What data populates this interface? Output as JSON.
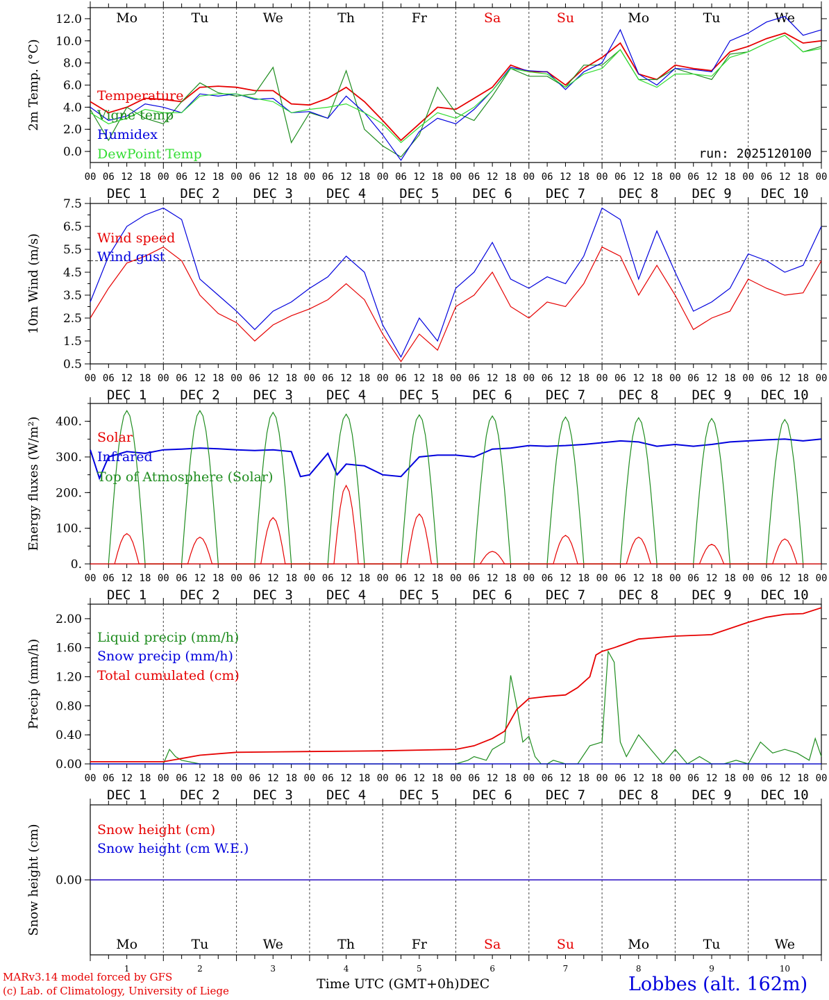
{
  "site": "Lobbes (alt. 162m)",
  "credit_line1": "MARv3.14 model forced by GFS",
  "credit_line2": "(c) Lab. of Climatology, University of Liege",
  "x_title": "Time UTC (GMT+0h)",
  "x_month": "DEC",
  "day_names": [
    "Mo",
    "Tu",
    "We",
    "Th",
    "Fr",
    "Sa",
    "Su",
    "Mo",
    "Tu",
    "We"
  ],
  "weekend_days": [
    5,
    6
  ],
  "day_numbers": [
    "1",
    "2",
    "3",
    "4",
    "5",
    "6",
    "7",
    "8",
    "9",
    "10"
  ],
  "date_labels": [
    "DEC  1",
    "DEC  2",
    "DEC  3",
    "DEC  4",
    "DEC  5",
    "DEC  6",
    "DEC  7",
    "DEC  8",
    "DEC  9",
    "DEC 10"
  ],
  "hour_ticks": [
    "00",
    "06",
    "12",
    "18"
  ],
  "colors": {
    "red": "#e60000",
    "blue": "#0000dd",
    "green": "#1e8c1e",
    "lightgreen": "#33dd33",
    "weekend": "#e60000"
  },
  "chart_data": [
    {
      "type": "line",
      "ylabel": "2m Temp. (°C)",
      "ylim": [
        -1,
        13
      ],
      "yticks": [
        "0.0",
        "2.0",
        "4.0",
        "6.0",
        "8.0",
        "10.0",
        "12.0"
      ],
      "annotation": "run: 2025120100",
      "x_unit": "hours since DEC 1 00 UTC",
      "series": [
        {
          "name": "Temperature",
          "color": "#e60000",
          "x": [
            0,
            6,
            12,
            18,
            24,
            30,
            36,
            42,
            48,
            54,
            60,
            66,
            72,
            78,
            84,
            90,
            96,
            102,
            108,
            114,
            120,
            126,
            132,
            138,
            144,
            150,
            156,
            162,
            168,
            174,
            180,
            186,
            192,
            198,
            204,
            210,
            216,
            222,
            228,
            234,
            240
          ],
          "values": [
            4.5,
            3.5,
            4.0,
            4.8,
            4.7,
            4.5,
            5.8,
            5.9,
            5.8,
            5.5,
            5.5,
            4.3,
            4.2,
            4.8,
            5.8,
            4.5,
            2.8,
            1.0,
            2.5,
            4.0,
            3.8,
            4.8,
            5.8,
            7.8,
            7.2,
            7.2,
            6.0,
            7.5,
            8.5,
            9.8,
            7.0,
            6.5,
            7.8,
            7.5,
            7.3,
            9.0,
            9.5,
            10.2,
            10.7,
            9.8,
            10.0
          ]
        },
        {
          "name": "Vigne temp",
          "color": "#1e8c1e",
          "x": [
            0,
            6,
            12,
            18,
            24,
            30,
            36,
            42,
            48,
            54,
            60,
            66,
            72,
            78,
            84,
            90,
            96,
            102,
            108,
            114,
            120,
            126,
            132,
            138,
            144,
            150,
            156,
            162,
            168,
            174,
            180,
            186,
            192,
            198,
            204,
            210,
            216,
            222,
            228,
            234,
            240
          ],
          "values": [
            3.8,
            1.0,
            4.0,
            3.0,
            2.5,
            4.5,
            6.2,
            5.3,
            5.0,
            5.2,
            7.6,
            0.8,
            3.5,
            3.0,
            7.3,
            2.0,
            0.5,
            -0.5,
            1.5,
            5.8,
            3.5,
            2.8,
            5.0,
            7.5,
            6.8,
            6.8,
            5.8,
            7.8,
            7.8,
            9.2,
            6.5,
            6.5,
            7.5,
            7.0,
            6.5,
            8.8,
            9.0,
            9.8,
            10.5,
            9.0,
            9.5
          ]
        },
        {
          "name": "Humidex",
          "color": "#0000dd",
          "x": [
            0,
            6,
            12,
            18,
            24,
            30,
            36,
            42,
            48,
            54,
            60,
            66,
            72,
            78,
            84,
            90,
            96,
            102,
            108,
            114,
            120,
            126,
            132,
            138,
            144,
            150,
            156,
            162,
            168,
            174,
            180,
            186,
            192,
            198,
            204,
            210,
            216,
            222,
            228,
            234,
            240
          ],
          "values": [
            4.0,
            2.8,
            3.2,
            4.3,
            4.0,
            3.5,
            5.2,
            5.0,
            5.2,
            4.7,
            4.8,
            3.5,
            3.6,
            3.0,
            5.0,
            3.5,
            1.5,
            -0.8,
            1.8,
            3.0,
            2.5,
            3.8,
            5.5,
            7.6,
            7.3,
            7.2,
            5.6,
            7.2,
            8.0,
            11.0,
            7.0,
            6.0,
            7.5,
            7.4,
            7.2,
            10.0,
            10.7,
            11.7,
            12.2,
            10.5,
            11.0
          ]
        },
        {
          "name": "DewPoint Temp",
          "color": "#33dd33",
          "x": [
            0,
            6,
            12,
            18,
            24,
            30,
            36,
            42,
            48,
            54,
            60,
            66,
            72,
            78,
            84,
            90,
            96,
            102,
            108,
            114,
            120,
            126,
            132,
            138,
            144,
            150,
            156,
            162,
            168,
            174,
            180,
            186,
            192,
            198,
            204,
            210,
            216,
            222,
            228,
            234,
            240
          ],
          "values": [
            3.5,
            2.5,
            3.0,
            3.8,
            3.5,
            3.5,
            5.0,
            5.2,
            5.2,
            4.8,
            4.5,
            3.5,
            3.8,
            4.0,
            4.3,
            3.5,
            2.5,
            0.8,
            2.2,
            3.5,
            3.0,
            4.0,
            5.5,
            7.5,
            7.2,
            7.0,
            5.8,
            7.0,
            7.5,
            9.2,
            6.5,
            5.8,
            7.0,
            7.0,
            6.8,
            8.5,
            9.0,
            9.8,
            10.5,
            9.0,
            9.3
          ]
        }
      ]
    },
    {
      "type": "line",
      "ylabel": "10m Wind (m/s)",
      "ylim": [
        0.5,
        7.5
      ],
      "yticks": [
        "0.5",
        "1.5",
        "2.5",
        "3.5",
        "4.5",
        "5.5",
        "6.5",
        "7.5"
      ],
      "reference_line": 5.0,
      "x_unit": "hours since DEC 1 00 UTC",
      "series": [
        {
          "name": "Wind speed",
          "color": "#e60000",
          "x": [
            0,
            6,
            12,
            18,
            24,
            30,
            36,
            42,
            48,
            54,
            60,
            66,
            72,
            78,
            84,
            90,
            96,
            102,
            108,
            114,
            120,
            126,
            132,
            138,
            144,
            150,
            156,
            162,
            168,
            174,
            180,
            186,
            192,
            198,
            204,
            210,
            216,
            222,
            228,
            234,
            240
          ],
          "values": [
            2.5,
            3.8,
            4.9,
            5.2,
            5.6,
            5.0,
            3.5,
            2.7,
            2.3,
            1.5,
            2.2,
            2.6,
            2.9,
            3.3,
            4.0,
            3.3,
            1.8,
            0.6,
            1.8,
            1.1,
            3.0,
            3.5,
            4.5,
            3.0,
            2.5,
            3.2,
            3.0,
            4.0,
            5.6,
            5.2,
            3.5,
            4.8,
            3.5,
            2.0,
            2.5,
            2.8,
            4.2,
            3.8,
            3.5,
            3.6,
            5.0
          ]
        },
        {
          "name": "Wind gust",
          "color": "#0000dd",
          "x": [
            0,
            6,
            12,
            18,
            24,
            30,
            36,
            42,
            48,
            54,
            60,
            66,
            72,
            78,
            84,
            90,
            96,
            102,
            108,
            114,
            120,
            126,
            132,
            138,
            144,
            150,
            156,
            162,
            168,
            174,
            180,
            186,
            192,
            198,
            204,
            210,
            216,
            222,
            228,
            234,
            240
          ],
          "values": [
            3.2,
            5.2,
            6.5,
            7.0,
            7.3,
            6.8,
            4.2,
            3.5,
            2.8,
            2.0,
            2.8,
            3.2,
            3.8,
            4.3,
            5.2,
            4.5,
            2.2,
            0.8,
            2.5,
            1.5,
            3.8,
            4.5,
            5.8,
            4.2,
            3.8,
            4.3,
            4.0,
            5.2,
            7.3,
            6.8,
            4.2,
            6.3,
            4.5,
            2.8,
            3.2,
            3.8,
            5.3,
            5.0,
            4.5,
            4.8,
            6.5
          ]
        }
      ]
    },
    {
      "type": "line",
      "ylabel": "Energy fluxes (W/m²)",
      "ylim": [
        0,
        450
      ],
      "yticks": [
        "0.",
        "100.",
        "200.",
        "300.",
        "400."
      ],
      "x_unit": "hours since DEC 1 00 UTC",
      "series": [
        {
          "name": "Solar",
          "color": "#e60000",
          "daily_peak_x": [
            12,
            36,
            60,
            84,
            108,
            132,
            156,
            180,
            204,
            228
          ],
          "values": [
            85,
            75,
            130,
            220,
            140,
            35,
            80,
            75,
            55,
            70
          ]
        },
        {
          "name": "Infrared",
          "color": "#0000dd",
          "x": [
            0,
            3,
            6,
            12,
            18,
            24,
            30,
            36,
            42,
            48,
            54,
            60,
            66,
            69,
            72,
            78,
            81,
            84,
            90,
            96,
            102,
            108,
            114,
            120,
            126,
            132,
            138,
            144,
            150,
            156,
            162,
            168,
            174,
            180,
            186,
            192,
            198,
            204,
            210,
            216,
            222,
            228,
            234,
            240
          ],
          "values": [
            320,
            240,
            300,
            315,
            310,
            320,
            322,
            325,
            323,
            320,
            318,
            320,
            315,
            245,
            250,
            310,
            250,
            280,
            275,
            250,
            245,
            300,
            305,
            305,
            300,
            322,
            325,
            332,
            330,
            332,
            335,
            340,
            345,
            342,
            330,
            335,
            330,
            335,
            342,
            345,
            348,
            350,
            345,
            350
          ]
        },
        {
          "name": "Top of Atmosphere (Solar)",
          "color": "#1e8c1e",
          "daily_peak_x": [
            12,
            36,
            60,
            84,
            108,
            132,
            156,
            180,
            204,
            228
          ],
          "values": [
            430,
            430,
            425,
            420,
            418,
            415,
            412,
            410,
            408,
            405
          ]
        }
      ]
    },
    {
      "type": "line",
      "ylabel": "Precip (mm/h)",
      "ylim": [
        0,
        2.2
      ],
      "yticks": [
        "0.00",
        "0.40",
        "0.80",
        "1.20",
        "1.60",
        "2.00"
      ],
      "x_unit": "hours since DEC 1 00 UTC",
      "series": [
        {
          "name": "Liquid precip (mm/h)",
          "color": "#1e8c1e",
          "x": [
            0,
            24,
            26,
            28,
            30,
            36,
            48,
            72,
            96,
            120,
            124,
            126,
            130,
            132,
            136,
            138,
            140,
            142,
            144,
            146,
            148,
            150,
            152,
            156,
            160,
            164,
            168,
            170,
            172,
            174,
            176,
            180,
            184,
            188,
            192,
            196,
            200,
            204,
            208,
            212,
            216,
            220,
            224,
            228,
            232,
            236,
            238,
            240
          ],
          "values": [
            0,
            0,
            0.2,
            0.1,
            0.05,
            0,
            0,
            0,
            0,
            0,
            0.05,
            0.1,
            0.05,
            0.2,
            0.3,
            1.22,
            0.8,
            0.3,
            0.38,
            0.1,
            0,
            0,
            0.05,
            0,
            0,
            0.25,
            0.3,
            1.55,
            1.4,
            0.3,
            0.1,
            0.4,
            0.2,
            0,
            0.2,
            0,
            0.1,
            0,
            0,
            0.05,
            0,
            0.3,
            0.15,
            0.2,
            0.15,
            0.05,
            0.35,
            0.1
          ]
        },
        {
          "name": "Snow precip (mm/h)",
          "color": "#0000dd",
          "x": [
            0,
            240
          ],
          "values": [
            0,
            0
          ]
        },
        {
          "name": "Total cumulated (cm)",
          "color": "#e60000",
          "x": [
            0,
            24,
            36,
            48,
            72,
            96,
            120,
            126,
            132,
            136,
            140,
            144,
            150,
            156,
            160,
            164,
            166,
            168,
            172,
            180,
            192,
            204,
            216,
            222,
            228,
            234,
            240
          ],
          "values": [
            0.03,
            0.03,
            0.12,
            0.16,
            0.17,
            0.18,
            0.2,
            0.25,
            0.35,
            0.45,
            0.75,
            0.9,
            0.93,
            0.95,
            1.05,
            1.2,
            1.5,
            1.55,
            1.6,
            1.72,
            1.76,
            1.78,
            1.95,
            2.02,
            2.06,
            2.07,
            2.15
          ]
        }
      ]
    },
    {
      "type": "line",
      "ylabel": "Snow height (cm)",
      "ylim": [
        -1,
        1
      ],
      "yticks": [
        "0.00"
      ],
      "x_unit": "hours since DEC 1 00 UTC",
      "series": [
        {
          "name": "Snow height (cm)",
          "color": "#e60000",
          "x": [
            0,
            240
          ],
          "values": [
            0,
            0
          ]
        },
        {
          "name": "Snow height (cm W.E.)",
          "color": "#0000dd",
          "x": [
            0,
            240
          ],
          "values": [
            0,
            0
          ]
        }
      ]
    }
  ]
}
